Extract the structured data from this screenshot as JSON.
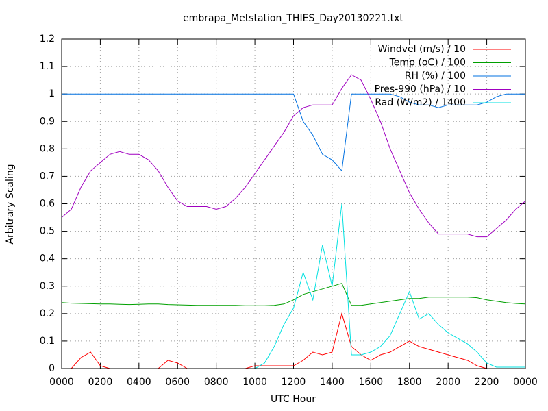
{
  "chart_data": {
    "type": "line",
    "title": "embrapa_Metstation_THIES_Day20130221.txt",
    "x_label": "UTC Hour",
    "y_label": "Arbitrary Scaling",
    "x": [
      0,
      0.5,
      1,
      1.5,
      2,
      2.5,
      3,
      3.5,
      4,
      4.5,
      5,
      5.5,
      6,
      6.5,
      7,
      7.5,
      8,
      8.5,
      9,
      9.5,
      10,
      10.5,
      11,
      11.5,
      12,
      12.5,
      13,
      13.5,
      14,
      14.5,
      15,
      15.5,
      16,
      16.5,
      17,
      17.5,
      18,
      18.5,
      19,
      19.5,
      20,
      20.5,
      21,
      21.5,
      22,
      22.5,
      23,
      23.5,
      24
    ],
    "series": [
      {
        "name": "Windvel (m/s) / 10",
        "color": "#ff0000",
        "values": [
          0,
          0,
          0.04,
          0.06,
          0.01,
          0,
          0,
          0,
          0,
          0,
          0,
          0.03,
          0.02,
          0,
          0,
          0,
          0,
          0,
          0,
          0,
          0.01,
          0.01,
          0.01,
          0.01,
          0.01,
          0.03,
          0.06,
          0.05,
          0.06,
          0.2,
          0.08,
          0.05,
          0.03,
          0.05,
          0.06,
          0.08,
          0.1,
          0.08,
          0.07,
          0.06,
          0.05,
          0.04,
          0.03,
          0.01,
          0,
          0,
          0,
          0,
          0
        ]
      },
      {
        "name": "Temp (oC) / 100",
        "color": "#00a000",
        "values": [
          0.24,
          0.238,
          0.237,
          0.236,
          0.235,
          0.235,
          0.234,
          0.233,
          0.234,
          0.235,
          0.235,
          0.233,
          0.232,
          0.231,
          0.23,
          0.23,
          0.23,
          0.23,
          0.23,
          0.229,
          0.229,
          0.229,
          0.23,
          0.235,
          0.25,
          0.27,
          0.28,
          0.29,
          0.3,
          0.31,
          0.23,
          0.23,
          0.235,
          0.24,
          0.245,
          0.25,
          0.255,
          0.255,
          0.26,
          0.26,
          0.26,
          0.26,
          0.26,
          0.258,
          0.25,
          0.245,
          0.24,
          0.237,
          0.235
        ]
      },
      {
        "name": "RH (%) / 100",
        "color": "#0070e0",
        "values": [
          1,
          1,
          1,
          1,
          1,
          1,
          1,
          1,
          1,
          1,
          1,
          1,
          1,
          1,
          1,
          1,
          1,
          1,
          1,
          1,
          1,
          1,
          1,
          1,
          1,
          0.9,
          0.85,
          0.78,
          0.76,
          0.72,
          1,
          1,
          1,
          1,
          1,
          0.99,
          0.97,
          0.96,
          0.96,
          0.95,
          0.96,
          0.96,
          0.96,
          0.96,
          0.97,
          0.99,
          1,
          1,
          1
        ]
      },
      {
        "name": "Pres-990 (hPa) / 10",
        "color": "#a000c0",
        "values": [
          0.55,
          0.58,
          0.66,
          0.72,
          0.75,
          0.78,
          0.79,
          0.78,
          0.78,
          0.76,
          0.72,
          0.66,
          0.61,
          0.59,
          0.59,
          0.59,
          0.58,
          0.59,
          0.62,
          0.66,
          0.71,
          0.76,
          0.81,
          0.86,
          0.92,
          0.95,
          0.96,
          0.96,
          0.96,
          1.02,
          1.07,
          1.05,
          0.98,
          0.9,
          0.8,
          0.72,
          0.64,
          0.58,
          0.53,
          0.49,
          0.49,
          0.49,
          0.49,
          0.48,
          0.48,
          0.51,
          0.54,
          0.58,
          0.61
        ]
      },
      {
        "name": "Rad (W/m2) / 1400",
        "color": "#00e0e0",
        "values": [
          0,
          0,
          0,
          0,
          0,
          0,
          0,
          0,
          0,
          0,
          0,
          0,
          0,
          0,
          0,
          0,
          0,
          0,
          0,
          0,
          0,
          0.02,
          0.08,
          0.16,
          0.22,
          0.35,
          0.25,
          0.45,
          0.3,
          0.6,
          0.05,
          0.05,
          0.06,
          0.08,
          0.12,
          0.2,
          0.28,
          0.18,
          0.2,
          0.16,
          0.13,
          0.11,
          0.09,
          0.06,
          0.02,
          0.005,
          0.005,
          0.005,
          0.005
        ]
      }
    ],
    "xlim": [
      0,
      24
    ],
    "xticks": [
      {
        "value": 0,
        "label": "0000"
      },
      {
        "value": 2,
        "label": "0200"
      },
      {
        "value": 4,
        "label": "0400"
      },
      {
        "value": 6,
        "label": "0600"
      },
      {
        "value": 8,
        "label": "0800"
      },
      {
        "value": 10,
        "label": "1000"
      },
      {
        "value": 12,
        "label": "1200"
      },
      {
        "value": 14,
        "label": "1400"
      },
      {
        "value": 16,
        "label": "1600"
      },
      {
        "value": 18,
        "label": "1800"
      },
      {
        "value": 20,
        "label": "2000"
      },
      {
        "value": 22,
        "label": "2200"
      },
      {
        "value": 24,
        "label": "0000"
      }
    ],
    "ylim": [
      0,
      1.2
    ],
    "yticks": [
      0,
      0.1,
      0.2,
      0.3,
      0.4,
      0.5,
      0.6,
      0.7,
      0.8,
      0.9,
      1,
      1.1,
      1.2
    ],
    "grid": true,
    "legend": "top-right"
  }
}
